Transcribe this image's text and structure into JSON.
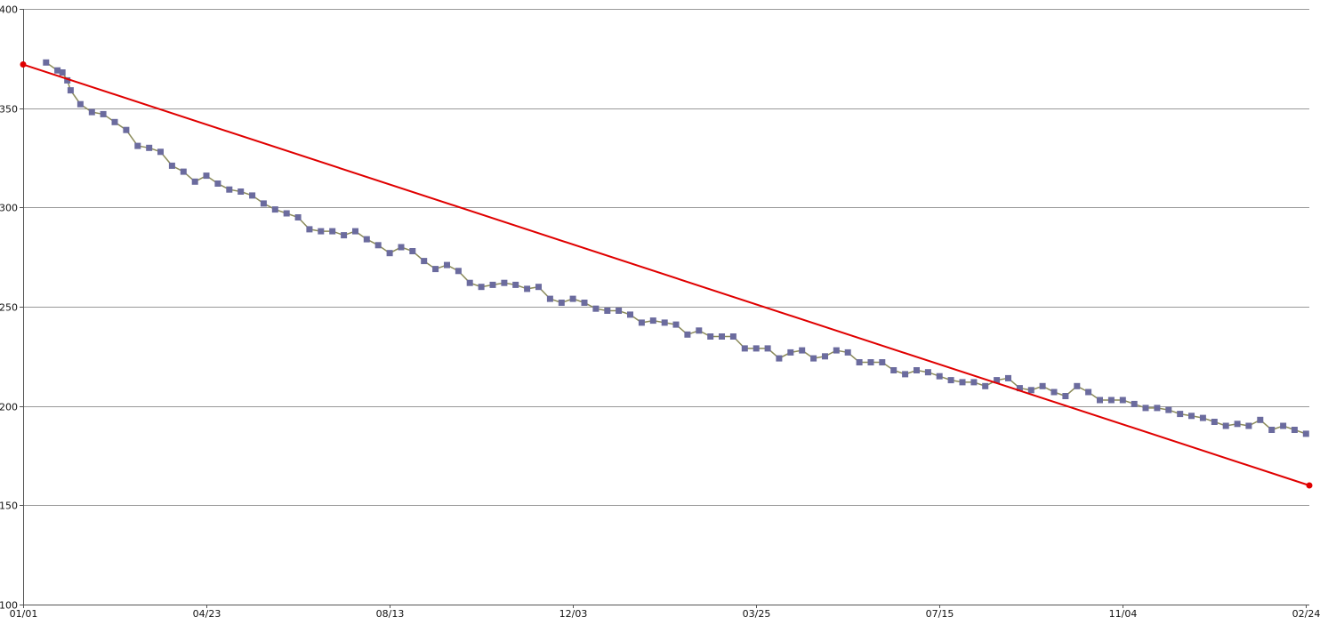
{
  "chart_data": {
    "type": "line",
    "title": "",
    "xlabel": "",
    "ylabel": "",
    "ylim": [
      100,
      400
    ],
    "yticks": [
      100,
      150,
      200,
      250,
      300,
      350,
      400
    ],
    "xticks": [
      {
        "label": "01/01",
        "day": 0
      },
      {
        "label": "04/23",
        "day": 112
      },
      {
        "label": "08/13",
        "day": 224
      },
      {
        "label": "12/03",
        "day": 336
      },
      {
        "label": "03/25",
        "day": 448
      },
      {
        "label": "07/15",
        "day": 560
      },
      {
        "label": "11/04",
        "day": 672
      },
      {
        "label": "02/24",
        "day": 784
      }
    ],
    "xlim": [
      0,
      786
    ],
    "grid": "horizontal",
    "colors": {
      "series": "#8b8b5a",
      "marker": "#6b6b9e",
      "trend": "#e00000",
      "grid": "#999999",
      "axis": "#555555"
    },
    "series": [
      {
        "x": [
          14,
          21,
          24,
          27,
          29,
          35,
          42,
          49,
          56,
          63,
          70,
          77,
          84,
          91,
          98,
          105,
          112,
          119,
          126,
          133,
          140,
          147,
          154,
          161,
          168,
          175,
          182,
          189,
          196,
          203,
          210,
          217,
          224,
          231,
          238,
          245,
          252,
          259,
          266,
          273,
          280,
          287,
          294,
          301,
          308,
          315,
          322,
          329,
          336,
          343,
          350,
          357,
          364,
          371,
          378,
          385,
          392,
          399,
          406,
          413,
          420,
          427,
          434,
          441,
          448,
          455,
          462,
          469,
          476,
          483,
          490,
          497,
          504,
          511,
          518,
          525,
          532,
          539,
          546,
          553,
          560,
          567,
          574,
          581,
          588,
          595,
          602,
          609,
          616,
          623,
          630,
          637,
          644,
          651,
          658,
          665,
          672,
          679,
          686,
          693,
          700,
          707,
          714,
          721,
          728,
          735,
          742,
          749,
          756,
          763,
          770,
          777,
          784
        ],
        "y": [
          373,
          369,
          368,
          364,
          359,
          352,
          348,
          347,
          343,
          339,
          331,
          330,
          328,
          321,
          318,
          313,
          316,
          312,
          309,
          308,
          306,
          302,
          299,
          297,
          295,
          289,
          288,
          288,
          286,
          288,
          284,
          281,
          277,
          280,
          278,
          273,
          269,
          271,
          268,
          262,
          260,
          261,
          262,
          261,
          259,
          260,
          254,
          252,
          254,
          252,
          249,
          248,
          248,
          246,
          242,
          243,
          242,
          241,
          236,
          238,
          235,
          235,
          235,
          229,
          229,
          229,
          224,
          227,
          228,
          224,
          225,
          228,
          227,
          222,
          222,
          222,
          218,
          216,
          218,
          217,
          215,
          213,
          212,
          212,
          210,
          213,
          214,
          209,
          208,
          210,
          207,
          205,
          210,
          207,
          203,
          203,
          203,
          201,
          199,
          199,
          198,
          196,
          195,
          194,
          192,
          190,
          191,
          190,
          193,
          188,
          190,
          188,
          186
        ]
      }
    ],
    "trend": {
      "x": [
        0,
        786
      ],
      "y": [
        372,
        160
      ]
    }
  }
}
